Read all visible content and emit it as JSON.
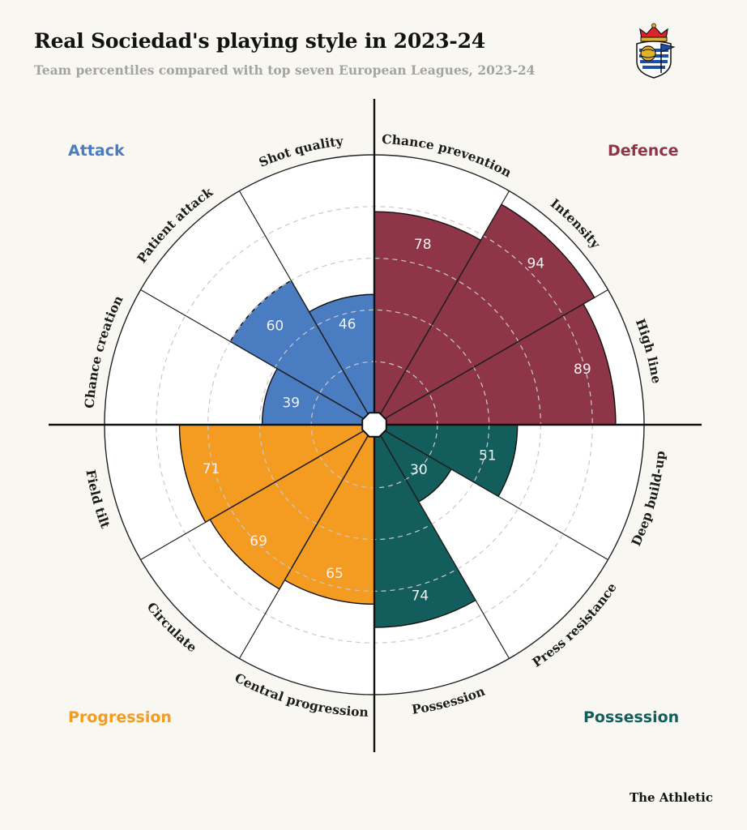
{
  "header": {
    "title": "Real Sociedad's playing style in 2023-24",
    "subtitle": "Team percentiles compared with top seven European Leagues, 2023-24"
  },
  "footer": {
    "credit": "The Athletic"
  },
  "colors": {
    "attack": "#4a7cc1",
    "defence": "#8e3648",
    "possession": "#135e5d",
    "progression": "#f49b22",
    "background": "#f8f7f2"
  },
  "chart_data": {
    "type": "polar-bar",
    "scale": [
      0,
      100
    ],
    "grid": true,
    "categories": [
      {
        "name": "Attack",
        "color": "#4a7cc1"
      },
      {
        "name": "Defence",
        "color": "#8e3648"
      },
      {
        "name": "Progression",
        "color": "#f49b22"
      },
      {
        "name": "Possession",
        "color": "#135e5d"
      }
    ],
    "metrics": [
      {
        "label": "Chance prevention",
        "value": 78,
        "category": "Defence"
      },
      {
        "label": "Intensity",
        "value": 94,
        "category": "Defence"
      },
      {
        "label": "High line",
        "value": 89,
        "category": "Defence"
      },
      {
        "label": "Deep build-up",
        "value": 51,
        "category": "Possession"
      },
      {
        "label": "Press resistance",
        "value": 30,
        "category": "Possession"
      },
      {
        "label": "Possession",
        "value": 74,
        "category": "Possession"
      },
      {
        "label": "Central progression",
        "value": 65,
        "category": "Progression"
      },
      {
        "label": "Circulate",
        "value": 69,
        "category": "Progression"
      },
      {
        "label": "Field tilt",
        "value": 71,
        "category": "Progression"
      },
      {
        "label": "Chance creation",
        "value": 39,
        "category": "Attack"
      },
      {
        "label": "Patient attack",
        "value": 60,
        "category": "Attack"
      },
      {
        "label": "Shot quality",
        "value": 46,
        "category": "Attack"
      }
    ]
  }
}
